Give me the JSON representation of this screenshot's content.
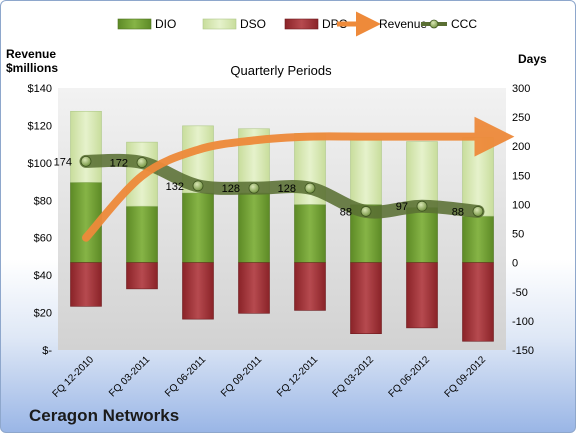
{
  "chart_data": {
    "type": "bar",
    "title": "Quarterly Periods",
    "company": "Ceragon Networks",
    "ylabel_left": "Revenue\n$millions",
    "ylabel_right": "Days",
    "categories": [
      "FQ 12-2010",
      "FQ 03-2011",
      "FQ 06-2011",
      "FQ 09-2011",
      "FQ 12-2011",
      "FQ 03-2012",
      "FQ 06-2012",
      "FQ 09-2012"
    ],
    "left_axis": {
      "min": 0,
      "max": 140,
      "step": 20,
      "tick_labels": [
        "$-",
        "$20",
        "$40",
        "$60",
        "$80",
        "$100",
        "$120",
        "$140"
      ]
    },
    "right_axis": {
      "min": -150,
      "max": 300,
      "step": 50,
      "tick_labels": [
        "-150",
        "-100",
        "-50",
        "0",
        "50",
        "100",
        "150",
        "200",
        "250",
        "300"
      ]
    },
    "series": [
      {
        "name": "DIO",
        "axis": "right",
        "values": [
          138,
          97,
          120,
          120,
          100,
          100,
          95,
          80
        ],
        "color": "#77a33a"
      },
      {
        "name": "DSO",
        "axis": "right",
        "values": [
          122,
          110,
          115,
          110,
          122,
          112,
          113,
          135
        ],
        "color": "#d6e9b2"
      },
      {
        "name": "DPO",
        "axis": "right",
        "values": [
          -75,
          -45,
          -97,
          -87,
          -82,
          -122,
          -112,
          -135
        ],
        "color": "#a8353a"
      },
      {
        "name": "Revenue",
        "axis": "left",
        "values": [
          60,
          93,
          107,
          112,
          114,
          114,
          114,
          114
        ],
        "color": "#ee8a3a"
      },
      {
        "name": "CCC",
        "axis": "right",
        "values": [
          174,
          172,
          132,
          128,
          128,
          88,
          97,
          88
        ],
        "labels": [
          "174",
          "172",
          "132",
          "128",
          "128",
          "88",
          "97",
          "88"
        ],
        "color": "#5f7f33"
      }
    ],
    "legend_position": "top",
    "grid": false
  }
}
